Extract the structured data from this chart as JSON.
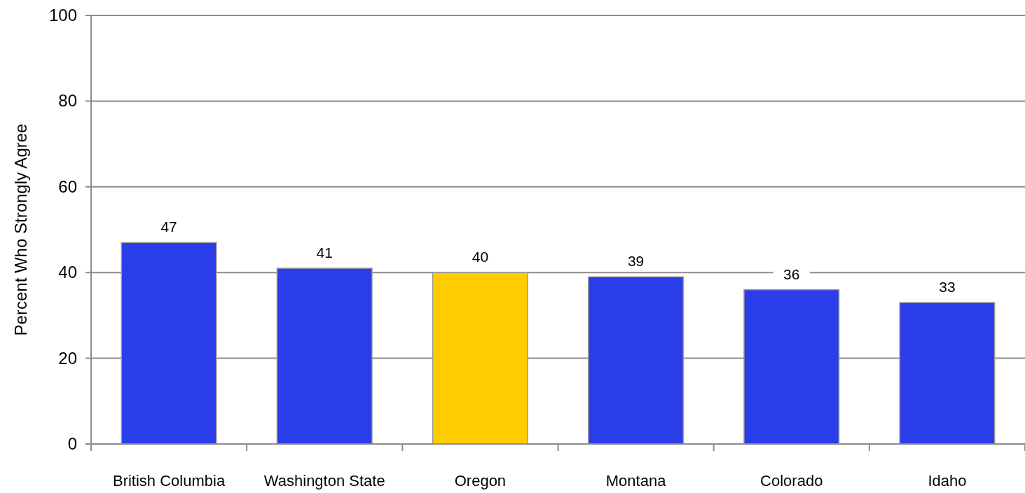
{
  "chart_data": {
    "type": "bar",
    "ylabel": "Percent Who Strongly Agree",
    "categories": [
      "British Columbia",
      "Washington State",
      "Oregon",
      "Montana",
      "Colorado",
      "Idaho"
    ],
    "values": [
      47,
      41,
      40,
      39,
      36,
      33
    ],
    "colors": [
      "#2b3de8",
      "#2b3de8",
      "#ffcc00",
      "#2b3de8",
      "#2b3de8",
      "#2b3de8"
    ],
    "ylim": [
      0,
      100
    ],
    "yticks": [
      0,
      20,
      40,
      60,
      80,
      100
    ],
    "grid": "y",
    "data_labels": true
  }
}
